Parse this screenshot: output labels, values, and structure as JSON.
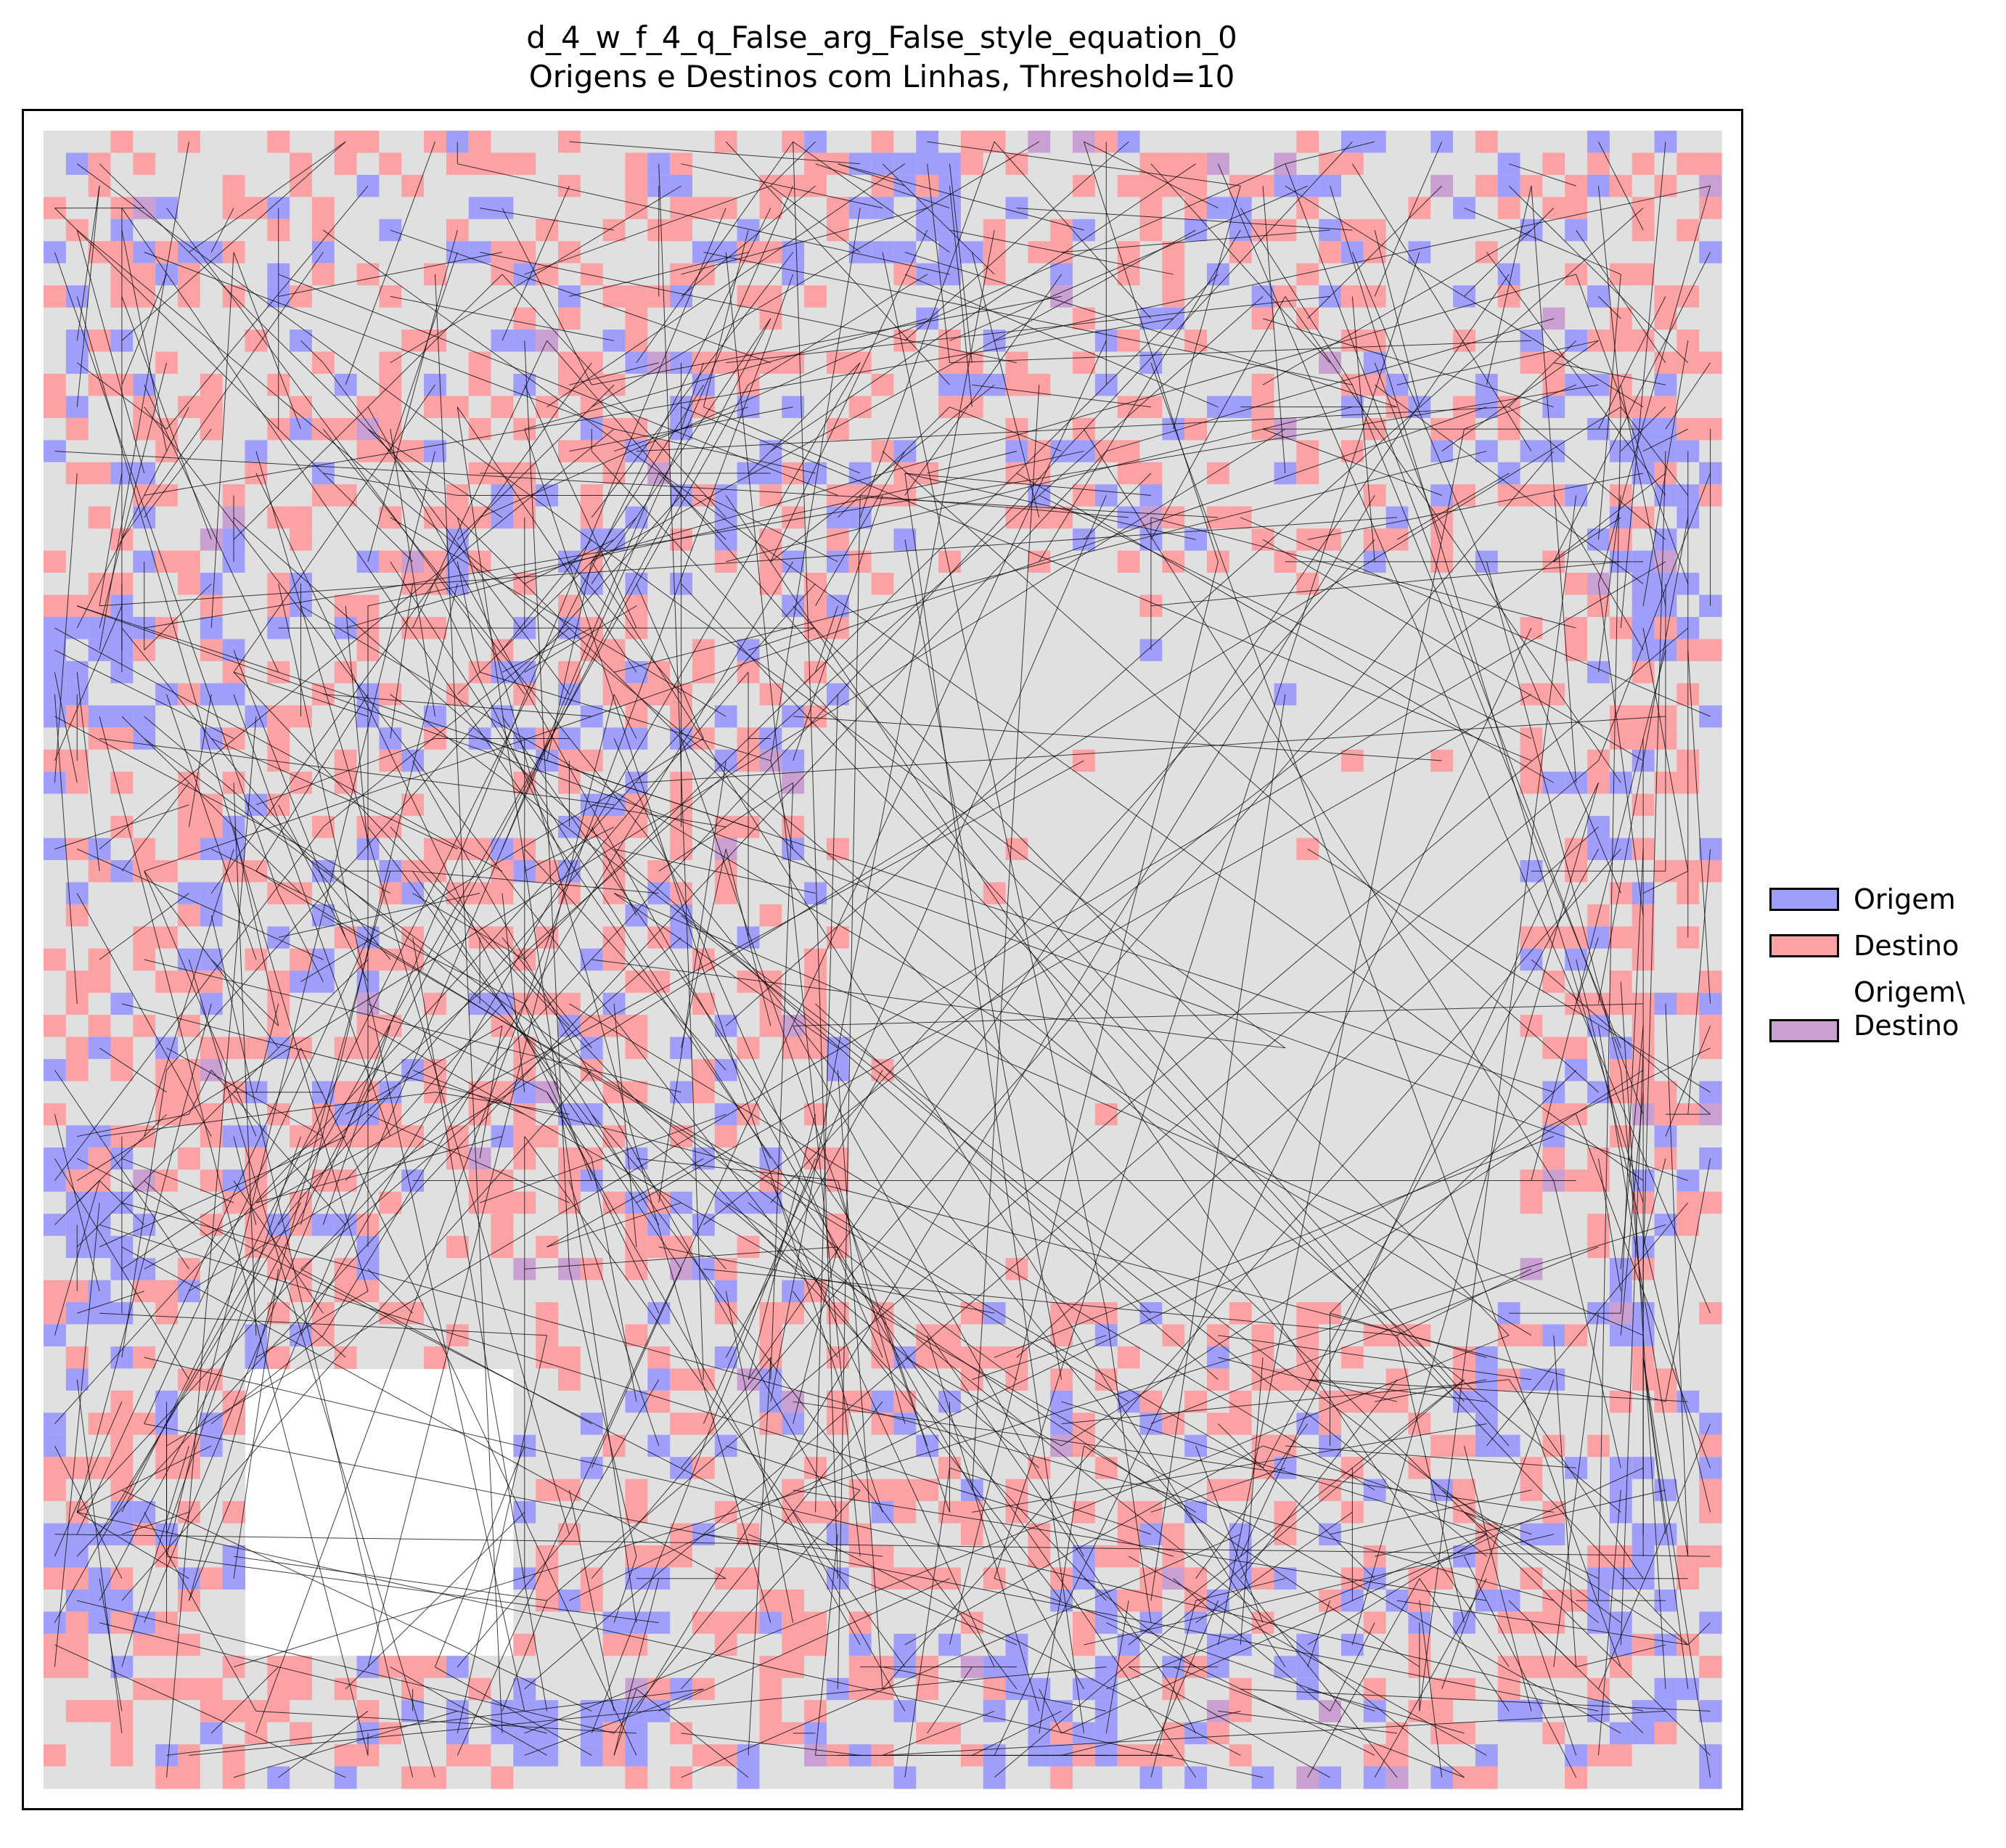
{
  "chart_data": {
    "type": "heatmap",
    "title": "d_4_w_f_4_q_False_arg_False_style_equation_0",
    "subtitle": "Origens e Destinos com Linhas, Threshold=10",
    "xlabel": "",
    "ylabel": "",
    "grid_size": 75,
    "axis_ticks": "none",
    "legend_placement": "right",
    "background_cell_color": "#e0e0e0",
    "legend": [
      {
        "label": "Origem",
        "color": "#9f9ffb"
      },
      {
        "label": "Destino",
        "color": "#fca1a4"
      },
      {
        "label": "Origem\\\nDestino",
        "color": "#c9a0d1"
      }
    ],
    "line_color": "#000000",
    "empty_cells_regions": [
      {
        "description": "white empty region",
        "cols": [
          9,
          20
        ],
        "rows": [
          56,
          68
        ]
      }
    ],
    "origins_clusters": [
      {
        "cols": [
          0,
          4
        ],
        "rows": [
          22,
          26
        ]
      },
      {
        "cols": [
          0,
          4
        ],
        "rows": [
          45,
          52
        ]
      },
      {
        "cols": [
          0,
          3
        ],
        "rows": [
          63,
          67
        ]
      },
      {
        "cols": [
          70,
          73
        ],
        "rows": [
          13,
          23
        ]
      },
      {
        "cols": [
          69,
          72
        ],
        "rows": [
          60,
          72
        ]
      },
      {
        "cols": [
          20,
          27
        ],
        "rows": [
          71,
          73
        ]
      },
      {
        "cols": [
          42,
          47
        ],
        "rows": [
          69,
          73
        ]
      },
      {
        "cols": [
          36,
          41
        ],
        "rows": [
          1,
          6
        ]
      }
    ],
    "sparse_center": {
      "cols": [
        36,
        65
      ],
      "rows": [
        20,
        52
      ]
    },
    "hub_destination": {
      "col": 55,
      "row": 41
    }
  }
}
